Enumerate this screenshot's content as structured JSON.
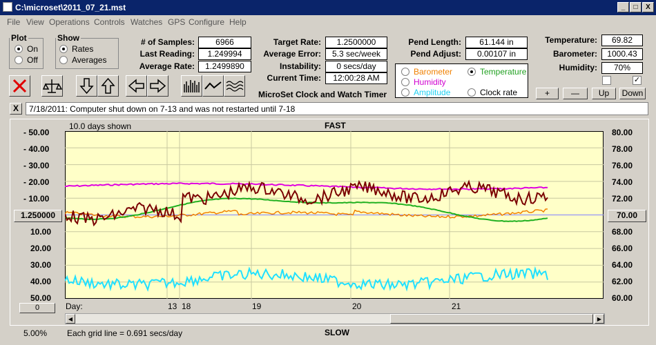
{
  "window": {
    "title": "C:\\microset\\2011_07_21.mst",
    "min": "_",
    "max": "□",
    "close": "X"
  },
  "menu": [
    "File",
    "View",
    "Operations",
    "Controls",
    "Watches",
    "GPS",
    "Configure",
    "Help"
  ],
  "plot_group": {
    "title": "Plot",
    "on": "On",
    "off": "Off"
  },
  "show_group": {
    "title": "Show",
    "rates": "Rates",
    "averages": "Averages"
  },
  "stats": {
    "samples_label": "# of Samples:",
    "samples": "6966",
    "last_label": "Last Reading:",
    "last": "1.249994",
    "avg_label": "Average Rate:",
    "avg": "1.2499890"
  },
  "target": {
    "rate_label": "Target Rate:",
    "rate": "1.2500000",
    "err_label": "Average Error:",
    "err": "5.3 sec/week",
    "inst_label": "Instability:",
    "inst": "0 secs/day",
    "time_label": "Current Time:",
    "time": "12:00:28 AM"
  },
  "pend": {
    "len_label": "Pend Length:",
    "len": "61.144 in",
    "adj_label": "Pend Adjust:",
    "adj": "0.00107 in"
  },
  "env": {
    "temp_label": "Temperature:",
    "temp": "69.82",
    "baro_label": "Barometer:",
    "baro": "1000.43",
    "hum_label": "Humidity:",
    "hum": "70%"
  },
  "options": {
    "barometer": "Barometer",
    "temperature": "Temperature",
    "humidity": "Humidity",
    "amplitude": "Amplitude",
    "clock_rate": "Clock rate"
  },
  "adjust_buttons": {
    "plus": "+",
    "minus": "—",
    "up": "Up",
    "down": "Down"
  },
  "checks": [
    "",
    "✓"
  ],
  "app_name": "MicroSet Clock and Watch Timer",
  "note": {
    "close": "X",
    "text": "7/18/2011: Computer shut down on 7-13 and was not restarted until 7-18"
  },
  "chart": {
    "days_shown": "10.0 days shown",
    "fast": "FAST",
    "slow": "SLOW",
    "left_ticks_top": [
      "- 50.00",
      "- 40.00",
      "- 30.00",
      "- 20.00",
      "- 10.00"
    ],
    "center_value": "1.250000",
    "left_ticks_bottom": [
      "10.00",
      "20.00",
      "30.00",
      "40.00",
      "50.00"
    ],
    "right_ticks": [
      "80.00",
      "78.00",
      "76.00",
      "74.00",
      "72.00",
      "70.00",
      "68.00",
      "66.00",
      "64.00",
      "62.00",
      "60.00"
    ],
    "right_center": "70.00",
    "day_label": "Day:",
    "days": [
      "13",
      "18",
      "19",
      "20",
      "21"
    ],
    "zero": "0",
    "percent": "5.00%",
    "grid_note": "Each grid line = 0.691 secs/day"
  },
  "colors": {
    "plot_bg": "#ffffc8",
    "rate": "#7a0000",
    "temperature": "#20b020",
    "barometer": "#f08000",
    "humidity": "#e000e0",
    "amplitude": "#20e0ff"
  }
}
